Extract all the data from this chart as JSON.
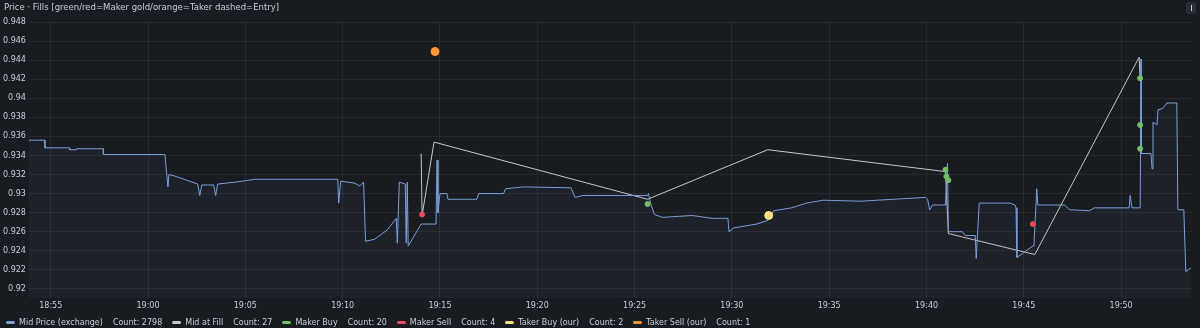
{
  "chart_data": {
    "type": "line",
    "title": "Price · Fills [green/red=Maker gold/orange=Taker dashed=Entry]",
    "xlim": [
      18.898,
      19.894
    ],
    "xticks": [
      {
        "value": 18.9167,
        "label": "18:55"
      },
      {
        "value": 19,
        "label": "19:00"
      },
      {
        "value": 19.0833,
        "label": "19:05"
      },
      {
        "value": 19.1667,
        "label": "19:10"
      },
      {
        "value": 19.25,
        "label": "19:15"
      },
      {
        "value": 19.3333,
        "label": "19:20"
      },
      {
        "value": 19.4167,
        "label": "19:25"
      },
      {
        "value": 19.5,
        "label": "19:30"
      },
      {
        "value": 19.5833,
        "label": "19:35"
      },
      {
        "value": 19.6667,
        "label": "19:40"
      },
      {
        "value": 19.75,
        "label": "19:45"
      },
      {
        "value": 19.8333,
        "label": "19:50"
      }
    ],
    "ylim": [
      0.919,
      0.948
    ],
    "yticks": [
      0.92,
      0.922,
      0.924,
      0.926,
      0.928,
      0.93,
      0.932,
      0.934,
      0.936,
      0.938,
      0.94,
      0.942,
      0.944,
      0.946,
      0.948
    ],
    "grid": true,
    "legend": "bottom",
    "marker": "none",
    "annotations": [
      "Count: 2798",
      "Count: 27",
      "Count: 20",
      "Count: 4",
      "Count: 2",
      "Count: 1"
    ],
    "series": [
      {
        "name": "Mid Price (exchange)",
        "type": "area",
        "color": "#7b9fd9",
        "x": [
          18.898,
          18.9116,
          18.9117,
          18.9328,
          18.9329,
          18.9388,
          18.9389,
          18.9617,
          18.9618,
          19.0145,
          19.0162,
          19.0171,
          19.0179,
          19.0239,
          19.0426,
          19.0443,
          19.046,
          19.0562,
          19.0579,
          19.0596,
          19.0749,
          19.0919,
          19.1625,
          19.1633,
          19.165,
          19.1769,
          19.1812,
          19.1846,
          19.1863,
          19.1939,
          19.205,
          19.2126,
          19.2135,
          19.2152,
          19.2203,
          19.2211,
          19.222,
          19.2228,
          19.2339,
          19.2356,
          19.2466,
          19.2475,
          19.2483,
          19.25,
          19.256,
          19.2569,
          19.2815,
          19.2832,
          19.3045,
          19.3062,
          19.3215,
          19.3623,
          19.3657,
          19.3725,
          19.4278,
          19.4286,
          19.4303,
          19.4337,
          19.4405,
          19.466,
          19.483,
          19.4966,
          19.4975,
          19.5017,
          19.5213,
          19.5307,
          19.5358,
          19.5511,
          19.5638,
          19.5783,
          19.6106,
          19.6659,
          19.6676,
          19.6693,
          19.6718,
          19.6829,
          19.6846,
          19.6854,
          19.6871,
          19.6973,
          19.6999,
          19.7084,
          19.7092,
          19.7118,
          19.7126,
          19.7381,
          19.7424,
          19.7433,
          19.7441,
          19.7577,
          19.7586,
          19.7611,
          19.762,
          19.7849,
          19.7892,
          19.8062,
          19.8104,
          19.8402,
          19.841,
          19.8427,
          19.8496,
          19.8504,
          19.8505,
          19.8589,
          19.8598,
          19.8606,
          19.864,
          19.8649,
          19.8683,
          19.8708,
          19.8725,
          19.881,
          19.8819,
          19.887,
          19.8887,
          19.8929
        ],
        "values": [
          0.9356,
          0.9356,
          0.9348,
          0.9348,
          0.9346,
          0.9346,
          0.9347,
          0.9347,
          0.9341,
          0.9341,
          0.9318,
          0.9307,
          0.932,
          0.9318,
          0.931,
          0.9298,
          0.9309,
          0.9309,
          0.9298,
          0.931,
          0.9312,
          0.9315,
          0.9315,
          0.929,
          0.9313,
          0.9311,
          0.9308,
          0.9312,
          0.925,
          0.9252,
          0.9262,
          0.9274,
          0.9248,
          0.9312,
          0.931,
          0.9248,
          0.9312,
          0.9245,
          0.9268,
          0.9268,
          0.9268,
          0.9335,
          0.928,
          0.93,
          0.93,
          0.9294,
          0.9294,
          0.93,
          0.93,
          0.9305,
          0.9307,
          0.9306,
          0.9296,
          0.9298,
          0.9298,
          0.93,
          0.929,
          0.9278,
          0.9275,
          0.9277,
          0.9274,
          0.9274,
          0.926,
          0.9264,
          0.9268,
          0.9272,
          0.9282,
          0.9285,
          0.929,
          0.9293,
          0.9292,
          0.9296,
          0.9294,
          0.9283,
          0.9288,
          0.9288,
          0.9332,
          0.926,
          0.926,
          0.926,
          0.9256,
          0.9256,
          0.9232,
          0.929,
          0.929,
          0.929,
          0.9288,
          0.9285,
          0.9233,
          0.9245,
          0.9245,
          0.9305,
          0.9288,
          0.9288,
          0.9283,
          0.9282,
          0.9285,
          0.9285,
          0.9298,
          0.9285,
          0.9285,
          0.9441,
          0.9342,
          0.9342,
          0.9326,
          0.9375,
          0.9372,
          0.9388,
          0.9389,
          0.9392,
          0.9395,
          0.9395,
          0.9283,
          0.9283,
          0.9218,
          0.9222
        ]
      },
      {
        "name": "Mid at Fill",
        "type": "line",
        "color": "#c8c8c8",
        "x": [
          19.2339,
          19.2347,
          19.2449,
          19.4278,
          19.5307,
          19.6829,
          19.6854,
          19.7594,
          19.8487,
          19.8496
        ],
        "values": [
          0.9342,
          0.9277,
          0.9354,
          0.9294,
          0.9346,
          0.9323,
          0.9258,
          0.9236,
          0.9443,
          0.9421
        ]
      },
      {
        "name": "Maker Buy",
        "type": "scatter",
        "marker": "circle",
        "color": "#73bf69",
        "x": [
          19.4278,
          19.6829,
          19.6837,
          19.6854,
          19.8496,
          19.8496,
          19.8496
        ],
        "values": [
          0.9289,
          0.9325,
          0.9318,
          0.9314,
          0.9421,
          0.9372,
          0.9347
        ]
      },
      {
        "name": "Maker Sell",
        "type": "scatter",
        "marker": "circle",
        "color": "#f2495c",
        "x": [
          19.2347,
          19.7577
        ],
        "values": [
          0.9278,
          0.9268
        ]
      },
      {
        "name": "Taker Buy (our)",
        "type": "scatter",
        "marker": "circle",
        "color": "#ffdf80",
        "x": [
          19.5315
        ],
        "values": [
          0.9277
        ]
      },
      {
        "name": "Taker Sell (our)",
        "type": "scatter",
        "marker": "circle",
        "color": "#ff9830",
        "x": [
          19.2458
        ],
        "values": [
          0.9449
        ]
      }
    ]
  }
}
